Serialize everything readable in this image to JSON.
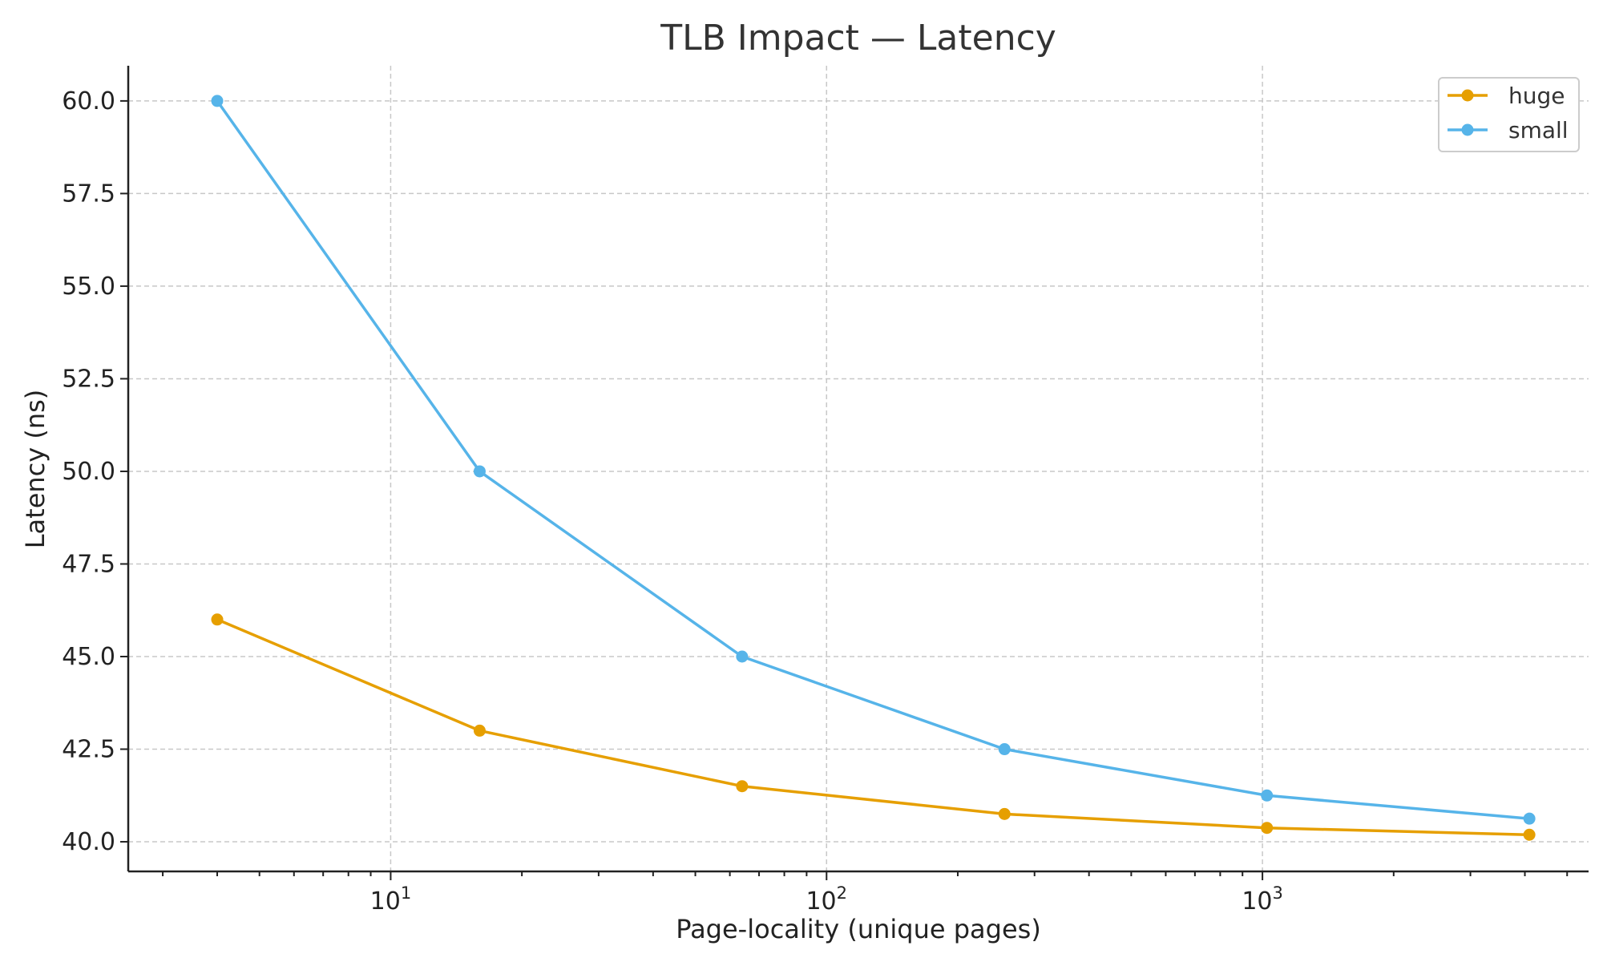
{
  "chart_data": {
    "type": "line",
    "title": "TLB Impact — Latency",
    "xlabel": "Page-locality (unique pages)",
    "ylabel": "Latency (ns)",
    "x_scale": "log",
    "xlim": [
      2.5,
      5600
    ],
    "ylim": [
      39.2,
      60.95
    ],
    "grid": true,
    "legend_position": "top-right",
    "x": [
      4,
      16,
      64,
      256,
      1024,
      4096
    ],
    "x_major_ticks": [
      {
        "value": 10,
        "base": "10",
        "exp": "1"
      },
      {
        "value": 100,
        "base": "10",
        "exp": "2"
      },
      {
        "value": 1000,
        "base": "10",
        "exp": "3"
      }
    ],
    "y_ticks": [
      {
        "value": 40.0,
        "label": "40.0"
      },
      {
        "value": 42.5,
        "label": "42.5"
      },
      {
        "value": 45.0,
        "label": "45.0"
      },
      {
        "value": 47.5,
        "label": "47.5"
      },
      {
        "value": 50.0,
        "label": "50.0"
      },
      {
        "value": 52.5,
        "label": "52.5"
      },
      {
        "value": 55.0,
        "label": "55.0"
      },
      {
        "value": 57.5,
        "label": "57.5"
      },
      {
        "value": 60.0,
        "label": "60.0"
      }
    ],
    "series": [
      {
        "name": "huge",
        "color": "#E69F00",
        "values": [
          46.0,
          43.0,
          41.5,
          40.75,
          40.375,
          40.19
        ]
      },
      {
        "name": "small",
        "color": "#56B4E9",
        "values": [
          60.0,
          50.0,
          45.0,
          42.5,
          41.25,
          40.625
        ]
      }
    ]
  }
}
